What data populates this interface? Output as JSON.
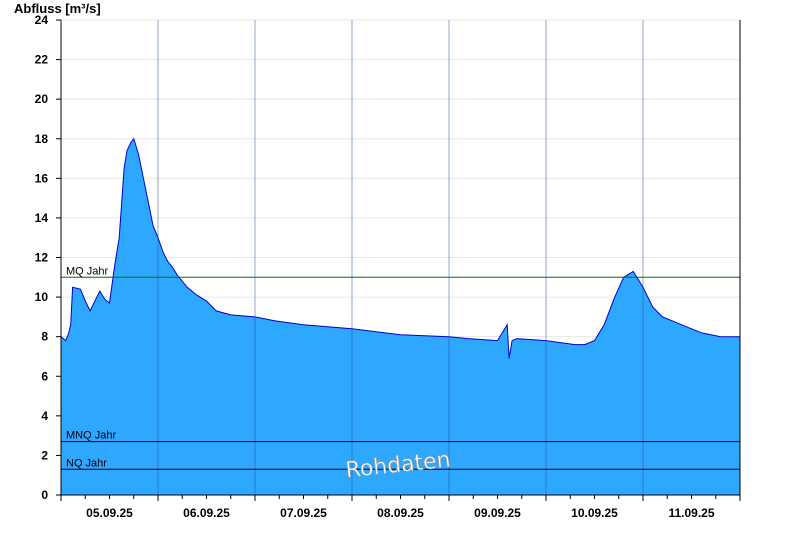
{
  "chart_data": {
    "type": "area",
    "ylabel": "Abfluss [m³/s]",
    "ylim": [
      0,
      24
    ],
    "yticks": [
      0,
      2,
      4,
      6,
      8,
      10,
      12,
      14,
      16,
      18,
      20,
      22,
      24
    ],
    "xlim_days": [
      0,
      7
    ],
    "xtick_labels": [
      "05.09.25",
      "06.09.25",
      "07.09.25",
      "08.09.25",
      "09.09.25",
      "10.09.25",
      "11.09.25"
    ],
    "watermark": "Rohdaten",
    "reference_lines": [
      {
        "name": "MQ Jahr",
        "value": 11.0,
        "color": "#007000"
      },
      {
        "name": "MNQ Jahr",
        "value": 2.7,
        "color": "#000000"
      },
      {
        "name": "NQ Jahr",
        "value": 1.3,
        "color": "#000000"
      }
    ],
    "series": [
      {
        "name": "",
        "fill": "#2ea8ff",
        "line": "#0000cc",
        "x": [
          0.0,
          0.05,
          0.08,
          0.1,
          0.12,
          0.2,
          0.25,
          0.3,
          0.35,
          0.4,
          0.45,
          0.5,
          0.55,
          0.6,
          0.65,
          0.68,
          0.72,
          0.75,
          0.8,
          0.85,
          0.9,
          0.95,
          1.0,
          1.05,
          1.1,
          1.15,
          1.2,
          1.25,
          1.3,
          1.4,
          1.5,
          1.6,
          1.75,
          2.0,
          2.2,
          2.5,
          3.0,
          3.5,
          4.0,
          4.2,
          4.5,
          4.6,
          4.62,
          4.65,
          4.7,
          5.0,
          5.3,
          5.4,
          5.5,
          5.6,
          5.7,
          5.8,
          5.9,
          6.0,
          6.1,
          6.2,
          6.3,
          6.4,
          6.5,
          6.6,
          6.7,
          6.8,
          7.0
        ],
        "y": [
          8.0,
          7.8,
          8.2,
          8.6,
          10.5,
          10.4,
          9.8,
          9.3,
          9.8,
          10.3,
          9.9,
          9.7,
          11.5,
          13.0,
          16.5,
          17.4,
          17.8,
          18.0,
          17.2,
          16.0,
          14.8,
          13.6,
          13.0,
          12.3,
          11.8,
          11.5,
          11.1,
          10.8,
          10.5,
          10.1,
          9.8,
          9.3,
          9.1,
          9.0,
          8.8,
          8.6,
          8.4,
          8.1,
          8.0,
          7.9,
          7.8,
          8.6,
          6.9,
          7.8,
          7.9,
          7.8,
          7.6,
          7.6,
          7.8,
          8.6,
          9.9,
          11.0,
          11.3,
          10.5,
          9.5,
          9.0,
          8.8,
          8.6,
          8.4,
          8.2,
          8.1,
          8.0,
          8.0
        ]
      }
    ]
  }
}
